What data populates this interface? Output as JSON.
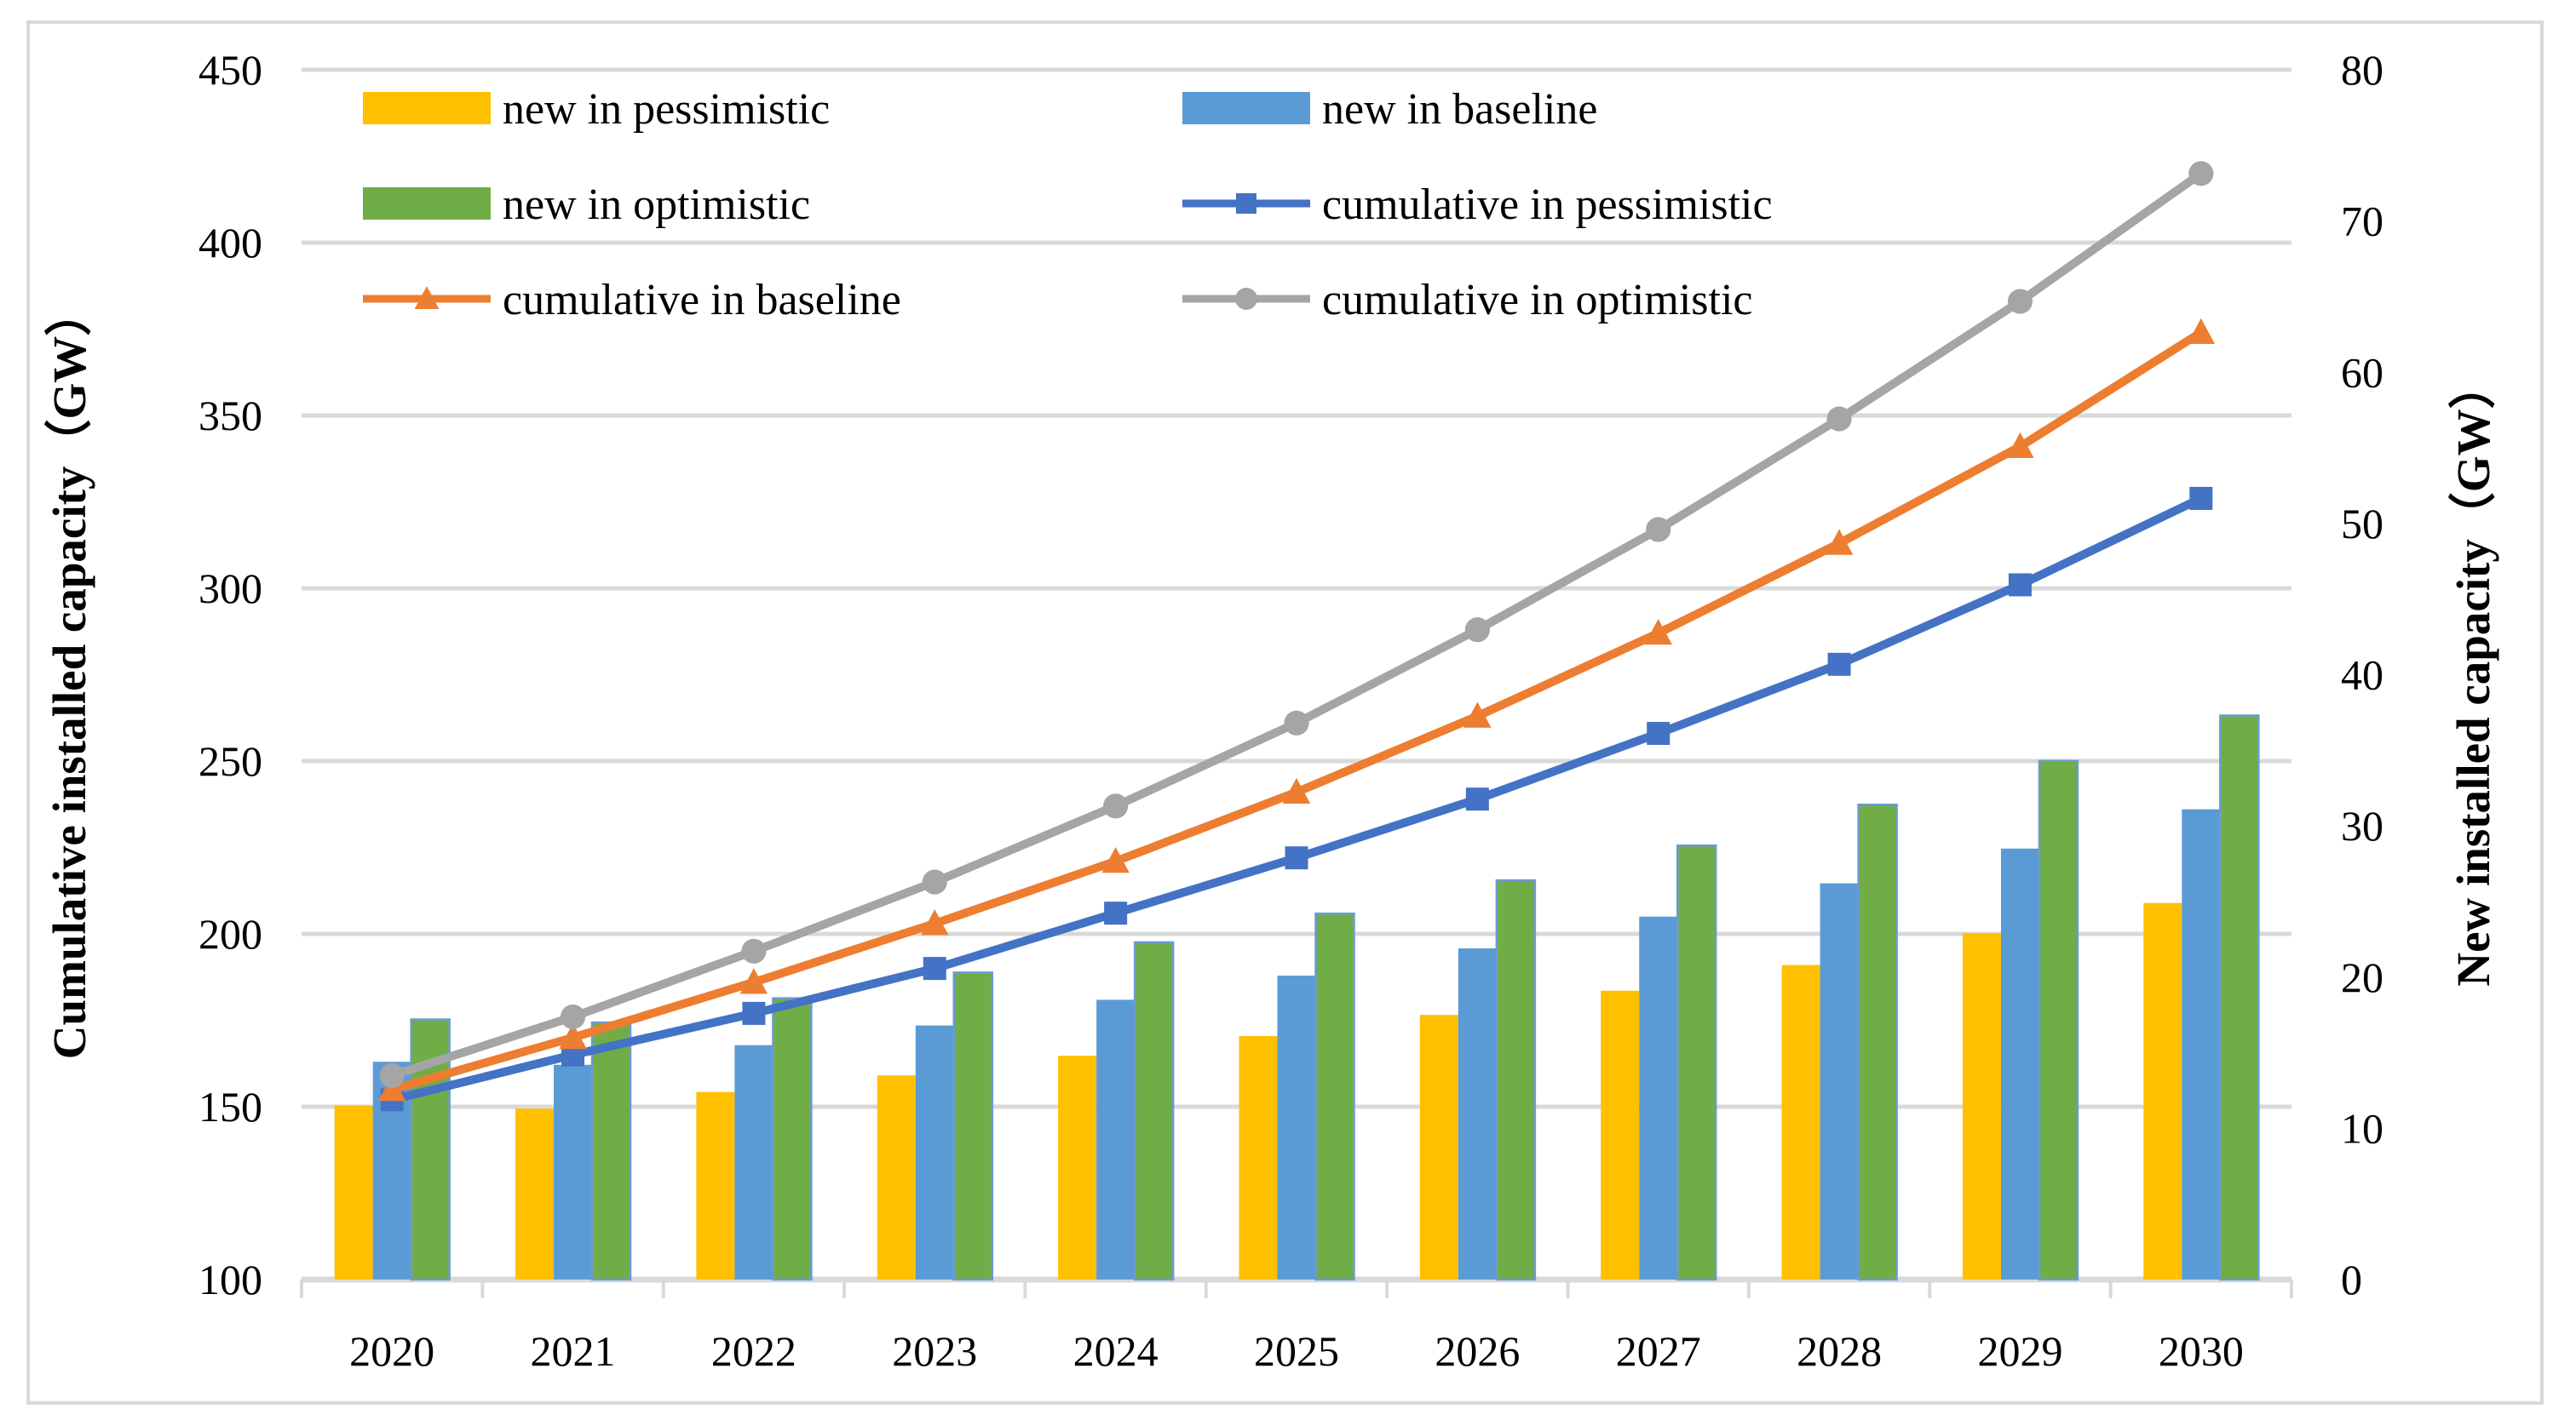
{
  "figure": {
    "background": "#FFFFFF",
    "frame_color": "#D9D9D9",
    "gridline_color": "#D9D9D9",
    "text_color": "#000000"
  },
  "chart_data": {
    "type": "bar+line combo",
    "grid": "horizontal",
    "legend_position": "top",
    "categories": [
      "2020",
      "2021",
      "2022",
      "2023",
      "2024",
      "2025",
      "2026",
      "2027",
      "2028",
      "2029",
      "2030"
    ],
    "bar_series": [
      {
        "name": "new in pessimistic",
        "axis": "right",
        "color": "#FFC000",
        "stroke": "none",
        "values": [
          11.5,
          11.3,
          12.4,
          13.5,
          14.8,
          16.1,
          17.5,
          19.1,
          20.8,
          22.9,
          24.9
        ]
      },
      {
        "name": "new in baseline",
        "axis": "right",
        "color": "#5B9BD5",
        "stroke": "none",
        "values": [
          14.4,
          14.2,
          15.5,
          16.8,
          18.5,
          20.1,
          21.9,
          24.0,
          26.2,
          28.5,
          31.1
        ]
      },
      {
        "name": "new in optimistic",
        "axis": "right",
        "color": "#70AD47",
        "stroke": "#6C9BD2",
        "values": [
          17.2,
          17.0,
          18.6,
          20.3,
          22.3,
          24.2,
          26.4,
          28.7,
          31.4,
          34.3,
          37.3
        ]
      }
    ],
    "line_series": [
      {
        "name": "cumulative in pessimistic",
        "axis": "left",
        "color": "#4472C4",
        "marker": "square",
        "values": [
          152,
          165,
          177,
          190,
          206,
          222,
          239,
          258,
          278,
          301,
          326
        ]
      },
      {
        "name": "cumulative in baseline",
        "axis": "left",
        "color": "#ED7D31",
        "marker": "triangle",
        "values": [
          155,
          170,
          186,
          203,
          221,
          241,
          263,
          287,
          313,
          341,
          374
        ]
      },
      {
        "name": "cumulative in optimistic",
        "axis": "left",
        "color": "#A5A5A5",
        "marker": "circle",
        "values": [
          159,
          176,
          195,
          215,
          237,
          261,
          288,
          317,
          349,
          383,
          420
        ]
      }
    ],
    "left_axis": {
      "title": "Cumulative installed capacity（GW）",
      "min": 100,
      "max": 450,
      "step": 50,
      "tick_labels": [
        "100",
        "150",
        "200",
        "250",
        "300",
        "350",
        "400",
        "450"
      ]
    },
    "right_axis": {
      "title": "New installed capacity（GW）",
      "min": 0,
      "max": 80,
      "step": 10,
      "tick_labels": [
        "0",
        "10",
        "20",
        "30",
        "40",
        "50",
        "60",
        "70",
        "80"
      ]
    },
    "legend_order": [
      "new in pessimistic",
      "new in baseline",
      "new in optimistic",
      "cumulative in pessimistic",
      "cumulative in baseline",
      "cumulative in optimistic"
    ]
  }
}
